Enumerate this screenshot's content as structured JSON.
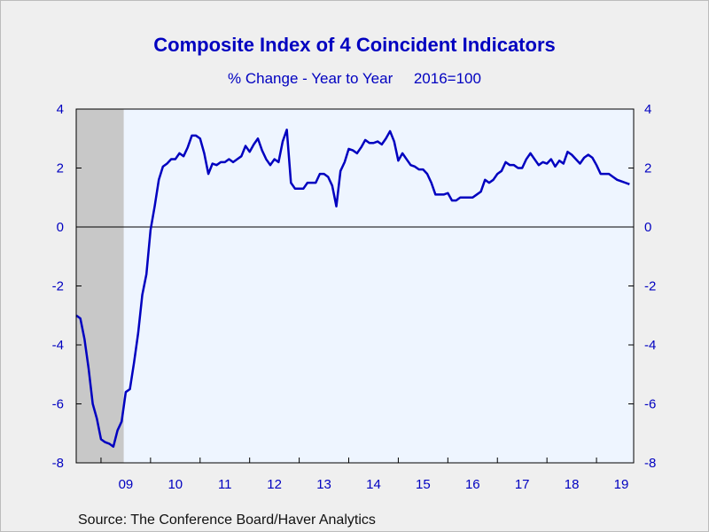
{
  "title": "Composite Index of 4 Coincident Indicators",
  "subtitle": "% Change - Year to Year     2016=100",
  "source": "Source:  The Conference Board/Haver Analytics",
  "colors": {
    "line": "#0000c0",
    "plot_background": "#eef5ff",
    "recession_shade": "#c8c8c8",
    "text": "#0000c0"
  },
  "chart_data": {
    "type": "line",
    "title": "Composite Index of 4 Coincident Indicators",
    "subtitle": "% Change - Year to Year     2016=100",
    "xlabel": "",
    "ylabel": "",
    "ylim": [
      -8,
      4
    ],
    "yticks": [
      4,
      2,
      0,
      -2,
      -4,
      -6,
      -8
    ],
    "ytick_labels": [
      "4",
      "2",
      "0",
      "-2",
      "-4",
      "-6",
      "-8"
    ],
    "xlim": [
      "2008-07",
      "2019-10"
    ],
    "x_tick_labels": [
      "09",
      "10",
      "11",
      "12",
      "13",
      "14",
      "15",
      "16",
      "17",
      "18",
      "19"
    ],
    "zero_line": true,
    "dual_y_axis": true,
    "recession_shading": {
      "start": "2008-07",
      "end": "2009-06"
    },
    "series": [
      {
        "x": [
          "2008-07",
          "2008-08",
          "2008-09",
          "2008-10",
          "2008-11",
          "2008-12",
          "2009-01",
          "2009-02",
          "2009-03",
          "2009-04",
          "2009-05",
          "2009-06",
          "2009-07",
          "2009-08",
          "2009-09",
          "2009-10",
          "2009-11",
          "2009-12",
          "2010-01",
          "2010-02",
          "2010-03",
          "2010-04",
          "2010-05",
          "2010-06",
          "2010-07",
          "2010-08",
          "2010-09",
          "2010-10",
          "2010-11",
          "2010-12",
          "2011-01",
          "2011-02",
          "2011-03",
          "2011-04",
          "2011-05",
          "2011-06",
          "2011-07",
          "2011-08",
          "2011-09",
          "2011-10",
          "2011-11",
          "2011-12",
          "2012-01",
          "2012-02",
          "2012-03",
          "2012-04",
          "2012-05",
          "2012-06",
          "2012-07",
          "2012-08",
          "2012-09",
          "2012-10",
          "2012-11",
          "2012-12",
          "2013-01",
          "2013-02",
          "2013-03",
          "2013-04",
          "2013-05",
          "2013-06",
          "2013-07",
          "2013-08",
          "2013-09",
          "2013-10",
          "2013-11",
          "2013-12",
          "2014-01",
          "2014-02",
          "2014-03",
          "2014-04",
          "2014-05",
          "2014-06",
          "2014-07",
          "2014-08",
          "2014-09",
          "2014-10",
          "2014-11",
          "2014-12",
          "2015-01",
          "2015-02",
          "2015-03",
          "2015-04",
          "2015-05",
          "2015-06",
          "2015-07",
          "2015-08",
          "2015-09",
          "2015-10",
          "2015-11",
          "2015-12",
          "2016-01",
          "2016-02",
          "2016-03",
          "2016-04",
          "2016-05",
          "2016-06",
          "2016-07",
          "2016-08",
          "2016-09",
          "2016-10",
          "2016-11",
          "2016-12",
          "2017-01",
          "2017-02",
          "2017-03",
          "2017-04",
          "2017-05",
          "2017-06",
          "2017-07",
          "2017-08",
          "2017-09",
          "2017-10",
          "2017-11",
          "2017-12",
          "2018-01",
          "2018-02",
          "2018-03",
          "2018-04",
          "2018-05",
          "2018-06",
          "2018-07",
          "2018-08",
          "2018-09",
          "2018-10",
          "2018-11",
          "2018-12",
          "2019-01",
          "2019-02",
          "2019-03",
          "2019-04",
          "2019-05",
          "2019-06",
          "2019-07",
          "2019-08",
          "2019-09"
        ],
        "values": [
          -3.0,
          -3.1,
          -3.8,
          -4.8,
          -6.0,
          -6.5,
          -7.2,
          -7.3,
          -7.35,
          -7.45,
          -6.9,
          -6.6,
          -5.6,
          -5.5,
          -4.6,
          -3.6,
          -2.3,
          -1.6,
          -0.1,
          0.7,
          1.6,
          2.05,
          2.15,
          2.3,
          2.3,
          2.5,
          2.4,
          2.7,
          3.1,
          3.1,
          3.0,
          2.5,
          1.8,
          2.15,
          2.1,
          2.2,
          2.2,
          2.3,
          2.2,
          2.3,
          2.4,
          2.75,
          2.55,
          2.8,
          3.0,
          2.6,
          2.3,
          2.1,
          2.3,
          2.2,
          2.9,
          3.3,
          1.5,
          1.3,
          1.3,
          1.3,
          1.5,
          1.5,
          1.5,
          1.8,
          1.8,
          1.7,
          1.4,
          0.7,
          1.9,
          2.2,
          2.65,
          2.6,
          2.5,
          2.7,
          2.95,
          2.85,
          2.85,
          2.9,
          2.8,
          3.0,
          3.25,
          2.9,
          2.25,
          2.5,
          2.3,
          2.1,
          2.05,
          1.95,
          1.95,
          1.8,
          1.5,
          1.1,
          1.1,
          1.1,
          1.15,
          0.9,
          0.9,
          1.0,
          1.0,
          1.0,
          1.0,
          1.1,
          1.2,
          1.6,
          1.5,
          1.6,
          1.8,
          1.9,
          2.2,
          2.1,
          2.1,
          2.0,
          2.0,
          2.3,
          2.5,
          2.3,
          2.1,
          2.2,
          2.15,
          2.3,
          2.05,
          2.25,
          2.15,
          2.55,
          2.45,
          2.3,
          2.15,
          2.35,
          2.45,
          2.35,
          2.1,
          1.8,
          1.8,
          1.8,
          1.7,
          1.6,
          1.55,
          1.5,
          1.45
        ]
      }
    ]
  }
}
